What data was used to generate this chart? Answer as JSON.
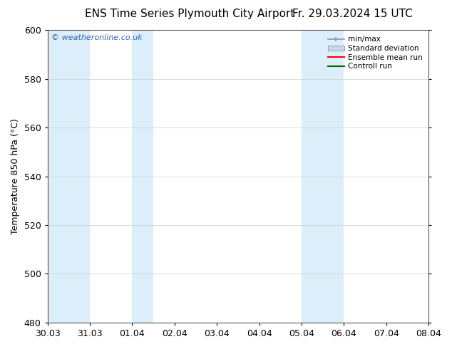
{
  "title": "ENS Time Series Plymouth City Airport",
  "title_right": "Fr. 29.03.2024 15 UTC",
  "ylabel": "Temperature 850 hPa (°C)",
  "watermark": "© weatheronline.co.uk",
  "xlim_dates": [
    "30.03",
    "31.03",
    "01.04",
    "02.04",
    "03.04",
    "04.04",
    "05.04",
    "06.04",
    "07.04",
    "08.04"
  ],
  "ylim": [
    480,
    600
  ],
  "yticks": [
    480,
    500,
    520,
    540,
    560,
    580,
    600
  ],
  "shade_color": "#dceefa",
  "bg_color": "#ffffff",
  "legend_items": [
    {
      "label": "min/max",
      "color": "#aabccc",
      "style": "minmax"
    },
    {
      "label": "Standard deviation",
      "color": "#c0d4e4",
      "style": "stddev"
    },
    {
      "label": "Ensemble mean run",
      "color": "red",
      "style": "line"
    },
    {
      "label": "Controll run",
      "color": "green",
      "style": "line"
    }
  ],
  "title_fontsize": 11,
  "tick_fontsize": 9,
  "label_fontsize": 9,
  "watermark_color": "#3366aa",
  "grid_color": "#cccccc",
  "spine_color": "#555555"
}
